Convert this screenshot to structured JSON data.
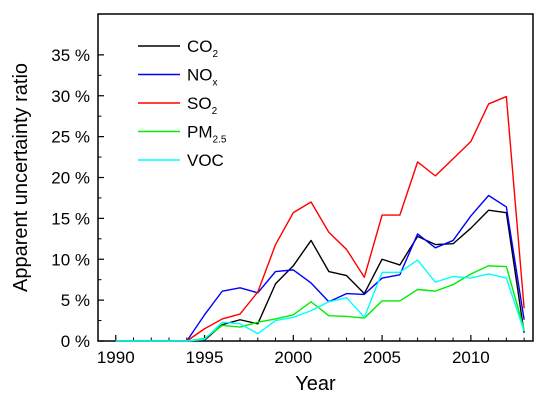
{
  "chart_data": {
    "type": "line",
    "xlabel": "Year",
    "ylabel": "Apparent uncertainty ratio",
    "xlim": [
      1989,
      2013.5
    ],
    "ylim": [
      0,
      40
    ],
    "x_ticks": [
      1990,
      1995,
      2000,
      2005,
      2010
    ],
    "y_ticks": [
      0,
      5,
      10,
      15,
      20,
      25,
      30,
      35
    ],
    "y_tick_labels": [
      "0 %",
      "5 %",
      "10 %",
      "15 %",
      "20 %",
      "25 %",
      "30 %",
      "35 %"
    ],
    "grid": false,
    "legend_position": "top-left",
    "x": [
      1990,
      1991,
      1992,
      1993,
      1994,
      1995,
      1996,
      1997,
      1998,
      1999,
      2000,
      2001,
      2002,
      2003,
      2004,
      2005,
      2006,
      2007,
      2008,
      2009,
      2010,
      2011,
      2012,
      2013
    ],
    "series": [
      {
        "name": "CO2",
        "label_main": "CO",
        "label_sub": "2",
        "color": "#000000",
        "values": [
          0,
          0,
          0,
          0,
          0,
          0.1,
          2.0,
          2.6,
          2.1,
          7.0,
          9.2,
          12.3,
          8.5,
          8.0,
          5.8,
          10.0,
          9.3,
          12.8,
          11.8,
          11.9,
          13.8,
          16.0,
          15.7,
          1.0
        ]
      },
      {
        "name": "NOx",
        "label_main": "NO",
        "label_sub": "x",
        "color": "#0000ff",
        "values": [
          0,
          0,
          0,
          0,
          0,
          3.2,
          6.1,
          6.5,
          5.9,
          8.5,
          8.7,
          7.1,
          4.8,
          5.8,
          5.7,
          7.7,
          8.1,
          13.1,
          11.4,
          12.3,
          15.3,
          17.8,
          16.4,
          2.6
        ]
      },
      {
        "name": "SO2",
        "label_main": "SO",
        "label_sub": "2",
        "color": "#ff0000",
        "values": [
          0,
          0,
          0,
          0,
          0,
          1.5,
          2.7,
          3.3,
          6.0,
          11.8,
          15.7,
          17.0,
          13.3,
          11.2,
          7.8,
          15.4,
          15.4,
          21.9,
          20.2,
          22.3,
          24.4,
          29.0,
          29.9,
          4.0
        ]
      },
      {
        "name": "PM2.5",
        "label_main": "PM",
        "label_sub": "2.5",
        "color": "#00ee00",
        "values": [
          0,
          0,
          0,
          0,
          0,
          0.3,
          1.9,
          1.7,
          2.3,
          2.7,
          3.2,
          4.8,
          3.1,
          3.0,
          2.8,
          4.9,
          4.9,
          6.3,
          6.1,
          6.9,
          8.2,
          9.2,
          9.1,
          1.4
        ]
      },
      {
        "name": "VOC",
        "label_main": "VOC",
        "label_sub": "",
        "color": "#00ffff",
        "values": [
          0,
          0,
          0,
          0,
          0,
          0.2,
          2.3,
          2.1,
          0.9,
          2.5,
          2.9,
          3.7,
          4.8,
          5.3,
          2.9,
          8.4,
          8.4,
          9.9,
          7.2,
          7.9,
          7.7,
          8.2,
          7.7,
          1.2
        ]
      }
    ]
  }
}
